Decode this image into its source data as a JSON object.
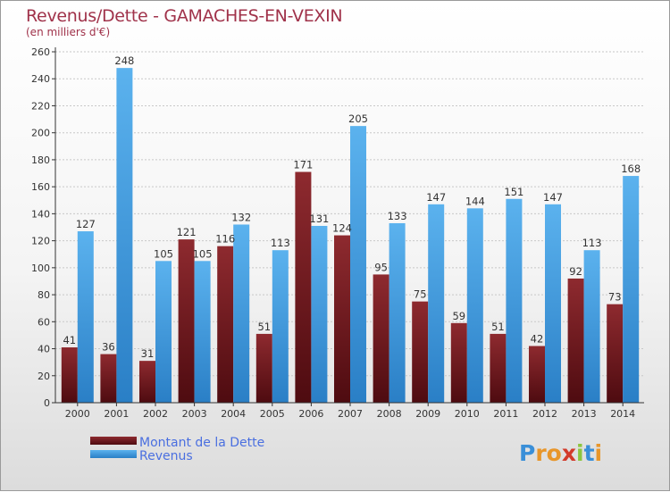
{
  "chart_data": {
    "type": "bar",
    "title": "Revenus/Dette - GAMACHES-EN-VEXIN",
    "subtitle": "(en milliers d'€)",
    "categories": [
      "2000",
      "2001",
      "2002",
      "2003",
      "2004",
      "2005",
      "2006",
      "2007",
      "2008",
      "2009",
      "2010",
      "2011",
      "2012",
      "2013",
      "2014"
    ],
    "series": [
      {
        "name": "Montant de la Dette",
        "color": "#7a1f24",
        "values": [
          41,
          36,
          31,
          121,
          116,
          51,
          171,
          124,
          95,
          75,
          59,
          51,
          42,
          92,
          73
        ]
      },
      {
        "name": "Revenus",
        "color": "#3d9be0",
        "values": [
          127,
          248,
          105,
          105,
          132,
          113,
          131,
          205,
          133,
          147,
          144,
          151,
          147,
          113,
          168
        ]
      }
    ],
    "ylim": [
      0,
      260
    ],
    "yticks": [
      0,
      20,
      40,
      60,
      80,
      100,
      120,
      140,
      160,
      180,
      200,
      220,
      240,
      260
    ],
    "grid": "horizontal",
    "legend": "bottom-left"
  },
  "branding": {
    "logo": "Proxiti"
  }
}
